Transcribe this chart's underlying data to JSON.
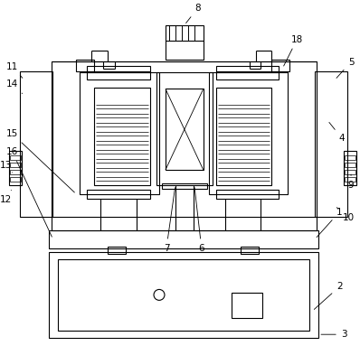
{
  "background_color": "#ffffff",
  "lc": "#000000",
  "lw": 0.8,
  "fontsize": 7.5
}
